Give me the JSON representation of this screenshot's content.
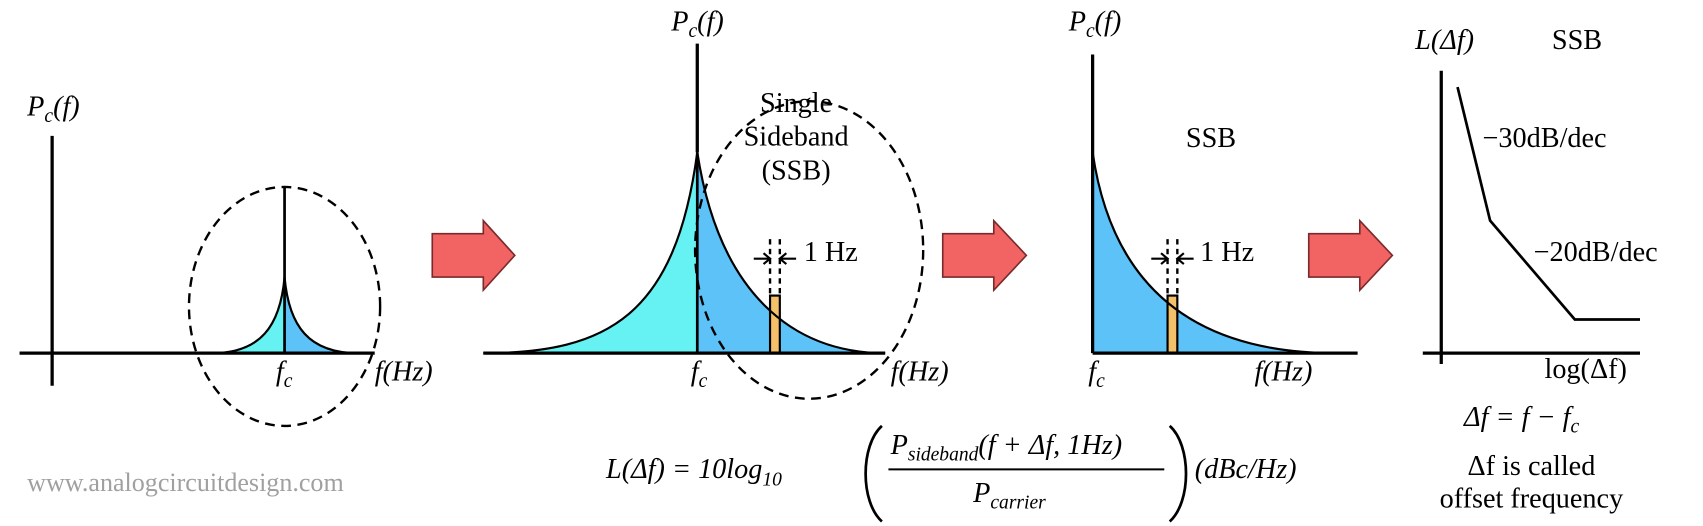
{
  "panels": [
    {
      "y_label": {
        "base": "P",
        "sub": "c",
        "rest": "(f)"
      },
      "carrier_label": {
        "base": "f",
        "sub": "c"
      },
      "x_label": "f(Hz)"
    },
    {
      "y_label": {
        "base": "P",
        "sub": "c",
        "rest": "(f)"
      },
      "carrier_label": {
        "base": "f",
        "sub": "c"
      },
      "x_label": "f(Hz)",
      "annotation": [
        "Single",
        "Sideband",
        "(SSB)"
      ],
      "bin_label": "1 Hz"
    },
    {
      "y_label": {
        "base": "P",
        "sub": "c",
        "rest": "(f)"
      },
      "carrier_label": {
        "base": "f",
        "sub": "c"
      },
      "x_label": "f(Hz)",
      "annotation": [
        "SSB"
      ],
      "bin_label": "1 Hz"
    },
    {
      "y_label": "L(Δf)",
      "title": "SSB",
      "slopes": [
        "−30dB/dec",
        "−20dB/dec"
      ],
      "x_label": "log(Δf)",
      "definition": {
        "lhs": "Δf = f − f",
        "sub": "c"
      },
      "note": [
        "Δf is called",
        "offset frequency"
      ]
    }
  ],
  "formula": {
    "lhs": "L(Δf) = 10log",
    "lhs_sub": "10",
    "num_base": "P",
    "num_sub": "sideband",
    "num_rest": "(f + Δf, 1Hz)",
    "den_base": "P",
    "den_sub": "carrier",
    "units": "(dBc/Hz)"
  },
  "watermark": "www.analogcircuitdesign.com"
}
